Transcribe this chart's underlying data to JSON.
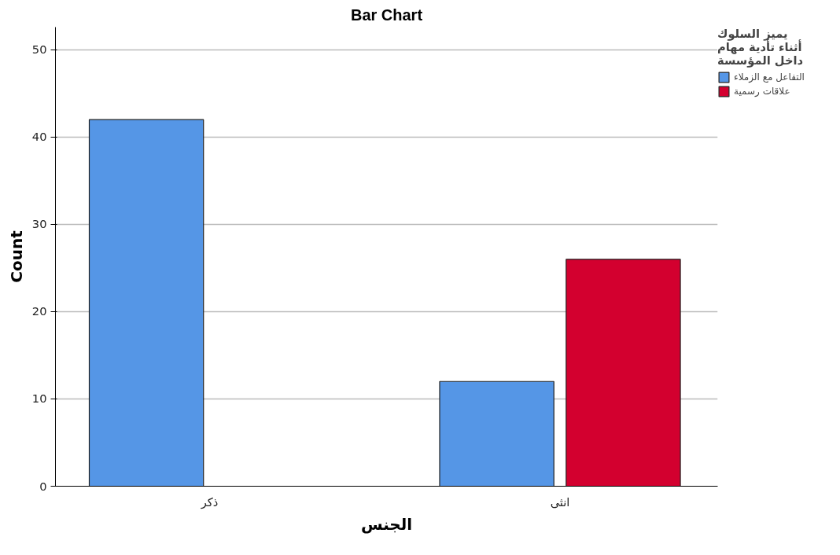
{
  "chart_data": {
    "type": "bar",
    "title": "Bar Chart",
    "xlabel": "الجنس",
    "ylabel": "Count",
    "legend_title": "يميز السلوك\nأثناء تأدية مهام\nداخل المؤسسة",
    "categories": [
      "ذكر",
      "انثى"
    ],
    "series": [
      {
        "name": "التفاعل مع الزملاء",
        "color": "#5596e6",
        "values": [
          42,
          12
        ]
      },
      {
        "name": "علاقات رسمية",
        "color": "#d3002f",
        "values": [
          null,
          26
        ]
      }
    ],
    "ylim": [
      0,
      52.6
    ],
    "yticks": [
      0,
      10,
      20,
      30,
      40,
      50
    ],
    "grid": "y",
    "legend": "top right"
  }
}
